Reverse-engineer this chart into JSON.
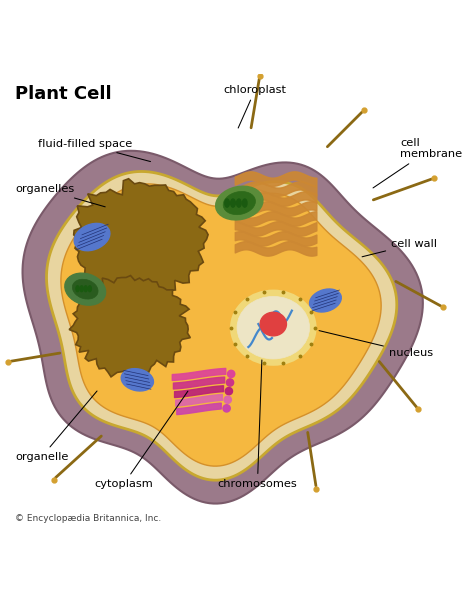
{
  "title": "Plant Cell",
  "copyright": "© Encyclopædia Britannica, Inc.",
  "bg_color": "#ffffff",
  "cell_wall_color": "#9b7a8a",
  "cell_wall_edge": "#7a5a6a",
  "cream_layer_color": "#e8d5a0",
  "cream_layer_edge": "#c8a830",
  "cytoplasm_color": "#f5b840",
  "cytoplasm_edge": "#d4902a",
  "vacuole_color": "#8B6914",
  "vacuole_edge": "#6a4a10",
  "chloroplast_outer": "#5a8c3a",
  "chloroplast_inner": "#2d6a1a",
  "chloroplast_dots": "#1a5a10",
  "mitochondria_color": "#5577cc",
  "mitochondria_edge": "#334488",
  "mitochondria_lines": "#223377",
  "nucleus_outer_color": "#f0d878",
  "nucleus_outer_edge": "#c0a020",
  "nucleus_inner_color": "#e8e0c0",
  "nucleus_pore_color": "#a08010",
  "nucleolus_color": "#e04040",
  "nucleolus_edge": "#a02020",
  "chromosomes_color": "#4488cc",
  "golgi_colors": [
    "#dd4499",
    "#cc3388",
    "#bb2277",
    "#dd66aa",
    "#cc44aa"
  ],
  "er_color": "#cc8833",
  "spine_color": "#8b6914",
  "spine_tip_color": "#d4a030",
  "annotations": [
    {
      "text": "chloroplast",
      "txy": [
        0.56,
        0.965
      ],
      "axy": [
        0.52,
        0.875
      ],
      "ha": "center"
    },
    {
      "text": "cell\nmembrane",
      "txy": [
        0.88,
        0.835
      ],
      "axy": [
        0.815,
        0.745
      ],
      "ha": "left"
    },
    {
      "text": "cell wall",
      "txy": [
        0.86,
        0.625
      ],
      "axy": [
        0.79,
        0.595
      ],
      "ha": "left"
    },
    {
      "text": "fluid-filled space",
      "txy": [
        0.08,
        0.845
      ],
      "axy": [
        0.335,
        0.805
      ],
      "ha": "left"
    },
    {
      "text": "organelles",
      "txy": [
        0.03,
        0.745
      ],
      "axy": [
        0.235,
        0.705
      ],
      "ha": "left"
    },
    {
      "text": "nucleus",
      "txy": [
        0.855,
        0.385
      ],
      "axy": [
        0.695,
        0.435
      ],
      "ha": "left"
    },
    {
      "text": "chromosomes",
      "txy": [
        0.565,
        0.095
      ],
      "axy": [
        0.575,
        0.375
      ],
      "ha": "center"
    },
    {
      "text": "cytoplasm",
      "txy": [
        0.27,
        0.095
      ],
      "axy": [
        0.415,
        0.305
      ],
      "ha": "center"
    },
    {
      "text": "organelle",
      "txy": [
        0.03,
        0.155
      ],
      "axy": [
        0.215,
        0.305
      ],
      "ha": "left"
    }
  ]
}
